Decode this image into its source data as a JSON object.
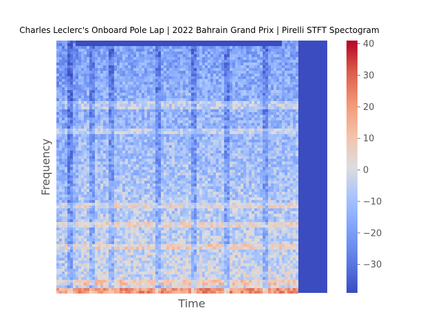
{
  "chart_data": {
    "type": "heatmap",
    "title": "Charles Leclerc's Onboard Pole Lap | 2022 Bahrain Grand Prix | Pirelli STFT Spectogram",
    "xlabel": "Time",
    "ylabel": "Frequency",
    "x_ticks": "hidden",
    "y_ticks": "hidden",
    "colormap": "coolwarm",
    "colorbar": {
      "range": [
        -39,
        41
      ],
      "ticks": [
        40,
        30,
        20,
        10,
        0,
        -10,
        -20,
        -30
      ]
    },
    "color_low": "#3b4cc0",
    "color_mid": "#dddddd",
    "color_high": "#b40426",
    "grid": false
  }
}
